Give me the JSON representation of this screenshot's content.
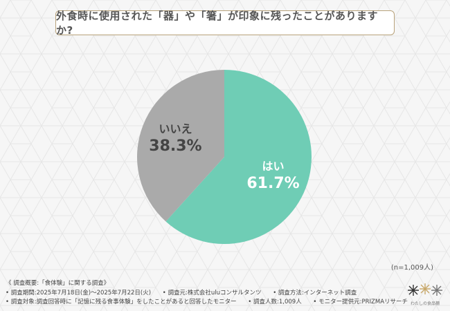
{
  "title": "外食時に使用された「器」や「箸」が印象に残ったことがありますか?",
  "chart_data": {
    "type": "pie",
    "title": "外食時に使用された「器」や「箸」が印象に残ったことがありますか?",
    "slices": [
      {
        "label": "はい",
        "value": 61.7,
        "value_text": "61.7%",
        "color": "#6fcdb5"
      },
      {
        "label": "いいえ",
        "value": 38.3,
        "value_text": "38.3%",
        "color": "#aaaaaa"
      }
    ],
    "start_angle_deg": 0,
    "direction": "clockwise",
    "legend": "none"
  },
  "sample_size": "(n=1,009人)",
  "footer": {
    "heading": "《 調査概要:「食体験」に関する調査》",
    "period": "• 調査期間:2025年7月18日(金)〜2025年7月22日(火)",
    "source": "• 調査元:株式会社uluコンサルタンツ",
    "method": "• 調査方法:インターネット調査",
    "target": "• 調査対象:調査回答時に「記憶に残る食事体験」をしたことがあると回答したモニター",
    "count": "• 調査人数:1,009人",
    "provider": "• モニター提供元:PRIZMAリサーチ"
  },
  "logo": {
    "text": "わたしの食品棚"
  }
}
